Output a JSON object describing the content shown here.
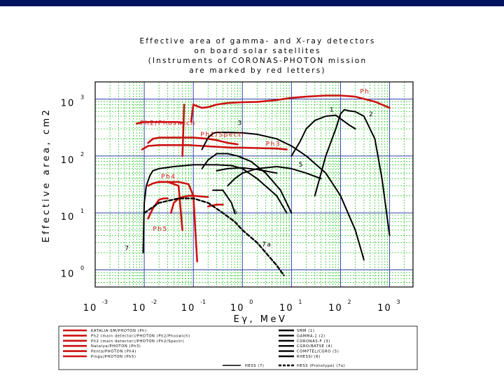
{
  "chart_data": {
    "type": "line",
    "title": [
      "Effective area of gamma- and X-ray detectors",
      "on board solar satellites",
      "(Instruments of CORONAS-PHOTON mission",
      "are marked by red letters)"
    ],
    "xlabel": "Eγ, MeV",
    "ylabel": "Effective area, cm2",
    "x_scale": "log",
    "y_scale": "log",
    "xlim": [
      0.001,
      3000
    ],
    "ylim": [
      0.5,
      2000
    ],
    "x_ticks": [
      {
        "value": 0.001,
        "base": "10",
        "exp": "-3"
      },
      {
        "value": 0.01,
        "base": "10",
        "exp": "-2"
      },
      {
        "value": 0.1,
        "base": "10",
        "exp": "-1"
      },
      {
        "value": 1,
        "base": "10",
        "exp": "0"
      },
      {
        "value": 10,
        "base": "10",
        "exp": "1"
      },
      {
        "value": 100,
        "base": "10",
        "exp": "2"
      },
      {
        "value": 1000,
        "base": "10",
        "exp": "3"
      }
    ],
    "y_ticks": [
      {
        "value": 1,
        "base": "10",
        "exp": "0"
      },
      {
        "value": 10,
        "base": "10",
        "exp": "1"
      },
      {
        "value": 100,
        "base": "10",
        "exp": "2"
      },
      {
        "value": 1000,
        "base": "10",
        "exp": "3"
      }
    ],
    "grid": true,
    "series": [
      {
        "color": "#cc1111",
        "width": 2.6,
        "dash": "",
        "points": [
          [
            0.09,
            400
          ],
          [
            0.1,
            800
          ],
          [
            0.12,
            750
          ],
          [
            0.15,
            700
          ],
          [
            0.2,
            720
          ],
          [
            0.3,
            800
          ],
          [
            0.5,
            850
          ],
          [
            1,
            880
          ],
          [
            2,
            890
          ],
          [
            5,
            960
          ],
          [
            10,
            1050
          ],
          [
            20,
            1100
          ],
          [
            50,
            1150
          ],
          [
            100,
            1150
          ],
          [
            200,
            1100
          ],
          [
            500,
            900
          ],
          [
            1000,
            700
          ]
        ]
      },
      {
        "color": "#cc1111",
        "width": 2.6,
        "dash": "",
        "points": [
          [
            0.007,
            370
          ],
          [
            0.008,
            380
          ],
          [
            0.01,
            395
          ],
          [
            0.02,
            395
          ],
          [
            0.04,
            395
          ],
          [
            0.05,
            395
          ],
          [
            0.06,
            385
          ]
        ]
      },
      {
        "color": "#cc1111",
        "width": 2.6,
        "dash": "",
        "points": [
          [
            0.06,
            100
          ],
          [
            0.065,
            800
          ]
        ]
      },
      {
        "color": "#cc1111",
        "width": 2.6,
        "dash": "",
        "points": [
          [
            0.012,
            170
          ],
          [
            0.015,
            200
          ],
          [
            0.02,
            210
          ],
          [
            0.03,
            210
          ],
          [
            0.05,
            210
          ],
          [
            0.1,
            210
          ],
          [
            0.2,
            200
          ],
          [
            0.3,
            190
          ],
          [
            0.5,
            170
          ],
          [
            0.8,
            160
          ]
        ]
      },
      {
        "color": "#cc1111",
        "width": 2.6,
        "dash": "",
        "points": [
          [
            0.009,
            130
          ],
          [
            0.012,
            150
          ],
          [
            0.02,
            155
          ],
          [
            0.05,
            155
          ],
          [
            0.08,
            155
          ],
          [
            0.15,
            150
          ],
          [
            0.3,
            145
          ],
          [
            0.6,
            140
          ],
          [
            1,
            140
          ],
          [
            2,
            138
          ],
          [
            5,
            135
          ],
          [
            8,
            130
          ]
        ]
      },
      {
        "color": "#cc1111",
        "width": 2.6,
        "dash": "",
        "points": [
          [
            0.012,
            30
          ],
          [
            0.015,
            33
          ],
          [
            0.02,
            35
          ],
          [
            0.03,
            35
          ],
          [
            0.05,
            30
          ],
          [
            0.06,
            5
          ]
        ]
      },
      {
        "color": "#cc1111",
        "width": 2.6,
        "dash": "",
        "points": [
          [
            0.035,
            10
          ],
          [
            0.04,
            15
          ],
          [
            0.05,
            18
          ],
          [
            0.06,
            19
          ],
          [
            0.08,
            20
          ],
          [
            0.1,
            20
          ],
          [
            0.2,
            19
          ]
        ]
      },
      {
        "color": "#cc1111",
        "width": 2.6,
        "dash": "",
        "points": [
          [
            0.2,
            13
          ],
          [
            0.3,
            14
          ],
          [
            0.4,
            14
          ]
        ]
      },
      {
        "color": "#cc1111",
        "width": 2.6,
        "dash": "",
        "points": [
          [
            0.02,
            35
          ],
          [
            0.03,
            35
          ],
          [
            0.05,
            35
          ],
          [
            0.08,
            32
          ],
          [
            0.1,
            20
          ],
          [
            0.12,
            1.4
          ]
        ]
      },
      {
        "color": "#cc1111",
        "width": 2.6,
        "dash": "",
        "points": [
          [
            0.012,
            8
          ],
          [
            0.015,
            12
          ],
          [
            0.02,
            17
          ],
          [
            0.025,
            18
          ],
          [
            0.03,
            18
          ]
        ]
      },
      {
        "color": "#000000",
        "width": 2.0,
        "dash": "",
        "points": [
          [
            0.0095,
            2
          ],
          [
            0.01,
            15
          ],
          [
            0.011,
            30
          ],
          [
            0.013,
            45
          ],
          [
            0.015,
            55
          ],
          [
            0.02,
            60
          ],
          [
            0.04,
            65
          ],
          [
            0.1,
            70
          ],
          [
            0.3,
            70
          ],
          [
            0.6,
            68
          ],
          [
            1,
            60
          ],
          [
            2,
            40
          ],
          [
            5,
            20
          ],
          [
            8,
            10
          ]
        ]
      },
      {
        "color": "#000000",
        "width": 2.0,
        "dash": "",
        "points": [
          [
            0.15,
            130
          ],
          [
            0.2,
            210
          ],
          [
            0.25,
            250
          ],
          [
            0.3,
            260
          ],
          [
            0.5,
            260
          ],
          [
            1,
            255
          ],
          [
            2,
            240
          ],
          [
            5,
            200
          ],
          [
            10,
            150
          ],
          [
            20,
            100
          ],
          [
            50,
            50
          ],
          [
            100,
            20
          ],
          [
            200,
            5
          ],
          [
            300,
            1.5
          ]
        ]
      },
      {
        "color": "#000000",
        "width": 2.0,
        "dash": "",
        "points": [
          [
            10,
            100
          ],
          [
            15,
            180
          ],
          [
            20,
            300
          ],
          [
            30,
            420
          ],
          [
            50,
            500
          ],
          [
            80,
            520
          ],
          [
            100,
            450
          ],
          [
            150,
            350
          ],
          [
            200,
            300
          ]
        ]
      },
      {
        "color": "#000000",
        "width": 2.0,
        "dash": "",
        "points": [
          [
            30,
            20
          ],
          [
            50,
            100
          ],
          [
            80,
            300
          ],
          [
            100,
            550
          ],
          [
            120,
            650
          ],
          [
            150,
            620
          ],
          [
            200,
            600
          ],
          [
            300,
            500
          ],
          [
            500,
            200
          ],
          [
            700,
            40
          ],
          [
            1000,
            4
          ]
        ]
      },
      {
        "color": "#000000",
        "width": 2.0,
        "dash": "",
        "points": [
          [
            0.5,
            30
          ],
          [
            0.7,
            40
          ],
          [
            1,
            50
          ],
          [
            2,
            60
          ],
          [
            5,
            65
          ],
          [
            10,
            60
          ],
          [
            20,
            50
          ],
          [
            40,
            40
          ]
        ]
      },
      {
        "color": "#000000",
        "width": 2.0,
        "dash": "",
        "points": [
          [
            0.15,
            60
          ],
          [
            0.2,
            85
          ],
          [
            0.3,
            110
          ],
          [
            0.5,
            110
          ],
          [
            0.8,
            100
          ],
          [
            1.5,
            80
          ],
          [
            3,
            50
          ],
          [
            6,
            25
          ],
          [
            10,
            10
          ]
        ]
      },
      {
        "color": "#000000",
        "width": 2.0,
        "dash": "",
        "points": [
          [
            0.25,
            25
          ],
          [
            0.4,
            25
          ],
          [
            0.6,
            15
          ],
          [
            0.7,
            10
          ]
        ]
      },
      {
        "color": "#000000",
        "width": 2.0,
        "dash": "",
        "points": [
          [
            0.3,
            55
          ],
          [
            0.5,
            60
          ],
          [
            1,
            62
          ],
          [
            2,
            58
          ],
          [
            5,
            50
          ]
        ]
      },
      {
        "color": "#000000",
        "width": 2.4,
        "dash": "5,3",
        "points": [
          [
            0.01,
            10
          ],
          [
            0.02,
            15
          ],
          [
            0.05,
            18
          ],
          [
            0.1,
            18
          ],
          [
            0.2,
            15
          ],
          [
            0.4,
            10
          ],
          [
            0.7,
            7
          ],
          [
            1,
            5
          ],
          [
            2,
            3
          ],
          [
            3,
            2
          ],
          [
            5,
            1.2
          ],
          [
            7,
            0.8
          ]
        ]
      }
    ],
    "annotations": [
      {
        "text": "Ph",
        "x": 250,
        "y": 1250,
        "color": "red"
      },
      {
        "text": "1",
        "x": 60,
        "y": 600,
        "color": "black"
      },
      {
        "text": "2",
        "x": 380,
        "y": 500,
        "color": "black"
      },
      {
        "text": "3",
        "x": 0.8,
        "y": 350,
        "color": "black"
      },
      {
        "text": "Ph2/Phoswich",
        "x": 0.0082,
        "y": 350,
        "color": "red"
      },
      {
        "text": "Ph2/Spectr",
        "x": 0.14,
        "y": 220,
        "color": "red"
      },
      {
        "text": "Ph3",
        "x": 3,
        "y": 150,
        "color": "red"
      },
      {
        "text": "5",
        "x": 14,
        "y": 65,
        "color": "black"
      },
      {
        "text": "Ph4",
        "x": 0.022,
        "y": 40,
        "color": "red"
      },
      {
        "text": "6",
        "x": 0.65,
        "y": 9.5,
        "color": "black"
      },
      {
        "text": "Ph5",
        "x": 0.015,
        "y": 4.8,
        "color": "red"
      },
      {
        "text": "7",
        "x": 0.004,
        "y": 2.2,
        "color": "black"
      },
      {
        "text": "7a",
        "x": 2.5,
        "y": 2.6,
        "color": "black"
      }
    ],
    "legend": {
      "placement": "bottom",
      "left": [
        {
          "label": "KATALIA-SM/PHOTON (Ph)",
          "color": "#cc1111"
        },
        {
          "label": "Ph2 (main detector)/PHOTON (Ph2/Phoswich)",
          "color": "#cc1111"
        },
        {
          "label": "Ph2 (main detector)/PHOTON (Ph2/Spectr)",
          "color": "#cc1111"
        },
        {
          "label": "Natalya/PHOTON (Ph3)",
          "color": "#cc1111"
        },
        {
          "label": "Penta/PHOTON (Ph4)",
          "color": "#cc1111"
        },
        {
          "label": "Pingu/PHOTON (Ph5)",
          "color": "#cc1111"
        }
      ],
      "right": [
        {
          "label": "SMM (1)",
          "color": "#000000"
        },
        {
          "label": "GAMMA-1 (2)",
          "color": "#000000"
        },
        {
          "label": "CORONAS-F (3)",
          "color": "#000000"
        },
        {
          "label": "CGRO/BATSE (4)",
          "color": "#000000"
        },
        {
          "label": "COMPTEL/CGRO (5)",
          "color": "#000000"
        },
        {
          "label": "RHESSI (6)",
          "color": "#000000"
        }
      ],
      "bottom_left": {
        "label": "HESS (7)",
        "color": "#000000"
      },
      "bottom_right": {
        "label": "HESS (Prototype) (7a)",
        "color": "#000000"
      }
    }
  }
}
